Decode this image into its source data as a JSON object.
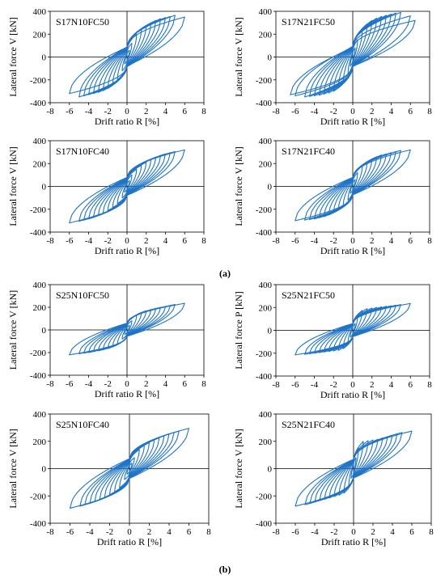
{
  "chart_data": [
    {
      "type": "line",
      "panel_group": "a",
      "specimen": "S17N10FC50",
      "title": "S17N10FC50",
      "xlabel": "Drift ratio R [%]",
      "ylabel": "Lateral force V [kN]",
      "xlim": [
        -8,
        8
      ],
      "ylim": [
        -400,
        400
      ],
      "xticks": [
        -8,
        -6,
        -4,
        -2,
        0,
        2,
        4,
        6,
        8
      ],
      "yticks": [
        -400,
        -200,
        0,
        200,
        400
      ],
      "peak_drifts": [
        0.25,
        0.5,
        1,
        1.5,
        2,
        2.5,
        3,
        3.5,
        4,
        4.5,
        5,
        6
      ],
      "positive_peaks": [
        60,
        120,
        200,
        245,
        275,
        300,
        320,
        335,
        345,
        355,
        365,
        350
      ],
      "negative_peaks": [
        -60,
        -120,
        -200,
        -245,
        -275,
        -295,
        -310,
        -320,
        -330,
        -340,
        -350,
        -320
      ]
    },
    {
      "type": "line",
      "panel_group": "a",
      "specimen": "S17N21FC50",
      "title": "S17N21FC50",
      "xlabel": "Drift ratio R [%]",
      "ylabel": "Lateral force V [kN]",
      "xlim": [
        -8,
        8
      ],
      "ylim": [
        -400,
        400
      ],
      "xticks": [
        -8,
        -6,
        -4,
        -2,
        0,
        2,
        4,
        6,
        8
      ],
      "yticks": [
        -400,
        -200,
        0,
        200,
        400
      ],
      "peak_drifts": [
        0.25,
        0.5,
        1,
        1.5,
        2,
        2.5,
        3,
        3.5,
        4,
        4.5,
        5,
        6,
        6.5
      ],
      "positive_peaks": [
        80,
        150,
        240,
        290,
        320,
        340,
        355,
        365,
        375,
        385,
        390,
        360,
        320
      ],
      "negative_peaks": [
        -80,
        -150,
        -230,
        -270,
        -300,
        -315,
        -325,
        -335,
        -340,
        -345,
        -350,
        -340,
        -330
      ]
    },
    {
      "type": "line",
      "panel_group": "a",
      "specimen": "S17N10FC40",
      "title": "S17N10FC40",
      "xlabel": "Drift ratio R [%]",
      "ylabel": "Lateral force V [kN]",
      "xlim": [
        -8,
        8
      ],
      "ylim": [
        -400,
        400
      ],
      "xticks": [
        -8,
        -6,
        -4,
        -2,
        0,
        2,
        4,
        6,
        8
      ],
      "yticks": [
        -400,
        -200,
        0,
        200,
        400
      ],
      "peak_drifts": [
        0.25,
        0.5,
        1,
        1.5,
        2,
        2.5,
        3,
        3.5,
        4,
        4.5,
        5,
        6
      ],
      "positive_peaks": [
        50,
        100,
        150,
        185,
        210,
        235,
        255,
        270,
        285,
        295,
        305,
        320
      ],
      "negative_peaks": [
        -50,
        -100,
        -150,
        -185,
        -210,
        -235,
        -255,
        -270,
        -285,
        -295,
        -305,
        -320
      ]
    },
    {
      "type": "line",
      "panel_group": "a",
      "specimen": "S17N21FC40",
      "title": "S17N21FC40",
      "xlabel": "Drift ratio R [%]",
      "ylabel": "Lateral force V [kN]",
      "xlim": [
        -8,
        8
      ],
      "ylim": [
        -400,
        400
      ],
      "xticks": [
        -8,
        -6,
        -4,
        -2,
        0,
        2,
        4,
        6,
        8
      ],
      "yticks": [
        -400,
        -200,
        0,
        200,
        400
      ],
      "peak_drifts": [
        0.25,
        0.5,
        1,
        1.5,
        2,
        2.5,
        3,
        3.5,
        4,
        4.5,
        5,
        6
      ],
      "positive_peaks": [
        60,
        120,
        180,
        215,
        240,
        260,
        275,
        285,
        295,
        305,
        315,
        320
      ],
      "negative_peaks": [
        -60,
        -120,
        -170,
        -205,
        -230,
        -250,
        -265,
        -275,
        -285,
        -290,
        -295,
        -300
      ]
    },
    {
      "type": "line",
      "panel_group": "b",
      "specimen": "S25N10FC50",
      "title": "S25N10FC50",
      "xlabel": "Drift ratio R [%]",
      "ylabel": "Lateral force V [kN]",
      "xlim": [
        -8,
        8
      ],
      "ylim": [
        -400,
        400
      ],
      "xticks": [
        -8,
        -6,
        -4,
        -2,
        0,
        2,
        4,
        6,
        8
      ],
      "yticks": [
        -400,
        -200,
        0,
        200,
        400
      ],
      "peak_drifts": [
        0.25,
        0.5,
        1,
        1.5,
        2,
        2.5,
        3,
        3.5,
        4,
        4.5,
        5,
        6
      ],
      "positive_peaks": [
        40,
        80,
        130,
        155,
        170,
        180,
        190,
        200,
        205,
        215,
        225,
        235
      ],
      "negative_peaks": [
        -40,
        -80,
        -130,
        -150,
        -165,
        -175,
        -185,
        -190,
        -200,
        -205,
        -210,
        -220
      ]
    },
    {
      "type": "line",
      "panel_group": "b",
      "specimen": "S25N21FC50",
      "title": "S25N21FC50",
      "xlabel": "Drift ratio R [%]",
      "ylabel": "Lateral force P [kN]",
      "xlim": [
        -8,
        8
      ],
      "ylim": [
        -400,
        400
      ],
      "xticks": [
        -8,
        -6,
        -4,
        -2,
        0,
        2,
        4,
        6,
        8
      ],
      "yticks": [
        -400,
        -200,
        0,
        200,
        400
      ],
      "peak_drifts": [
        0.25,
        0.5,
        1,
        1.5,
        2,
        2.5,
        3,
        3.5,
        4,
        4.5,
        5,
        6
      ],
      "positive_peaks": [
        60,
        120,
        175,
        190,
        195,
        200,
        205,
        210,
        215,
        220,
        225,
        235
      ],
      "negative_peaks": [
        -60,
        -110,
        -160,
        -175,
        -180,
        -185,
        -190,
        -195,
        -200,
        -205,
        -210,
        -215
      ]
    },
    {
      "type": "line",
      "panel_group": "b",
      "specimen": "S25N10FC40",
      "title": "S25N10FC40",
      "xlabel": "Drift ratio R [%]",
      "ylabel": "Lateral force V [kN]",
      "xlim": [
        -8,
        8
      ],
      "ylim": [
        -400,
        400
      ],
      "xticks": [
        -8,
        -6,
        -4,
        -2,
        0,
        2,
        4,
        6,
        8
      ],
      "yticks": [
        -400,
        -200,
        0,
        200,
        400
      ],
      "peak_drifts": [
        0.25,
        0.5,
        1,
        1.5,
        2,
        2.5,
        3,
        3.5,
        4,
        4.5,
        5,
        6
      ],
      "positive_peaks": [
        40,
        80,
        140,
        170,
        190,
        210,
        225,
        240,
        255,
        265,
        275,
        295
      ],
      "negative_peaks": [
        -40,
        -80,
        -140,
        -170,
        -190,
        -210,
        -225,
        -240,
        -255,
        -265,
        -275,
        -290
      ]
    },
    {
      "type": "line",
      "panel_group": "b",
      "specimen": "S25N21FC40",
      "title": "S25N21FC40",
      "xlabel": "Drift ratio R [%]",
      "ylabel": "Lateral force V [kN]",
      "xlim": [
        -8,
        8
      ],
      "ylim": [
        -400,
        400
      ],
      "xticks": [
        -8,
        -6,
        -4,
        -2,
        0,
        2,
        4,
        6,
        8
      ],
      "yticks": [
        -400,
        -200,
        0,
        200,
        400
      ],
      "peak_drifts": [
        0.25,
        0.5,
        1,
        1.5,
        2,
        2.5,
        3,
        3.5,
        4,
        4.5,
        5,
        6
      ],
      "positive_peaks": [
        80,
        150,
        200,
        205,
        210,
        215,
        225,
        235,
        245,
        255,
        265,
        275
      ],
      "negative_peaks": [
        -70,
        -130,
        -180,
        -195,
        -205,
        -215,
        -225,
        -235,
        -245,
        -255,
        -265,
        -275
      ]
    }
  ],
  "captions": {
    "a": "(a)",
    "b": "(b)"
  },
  "line_color": "#1f74c7"
}
